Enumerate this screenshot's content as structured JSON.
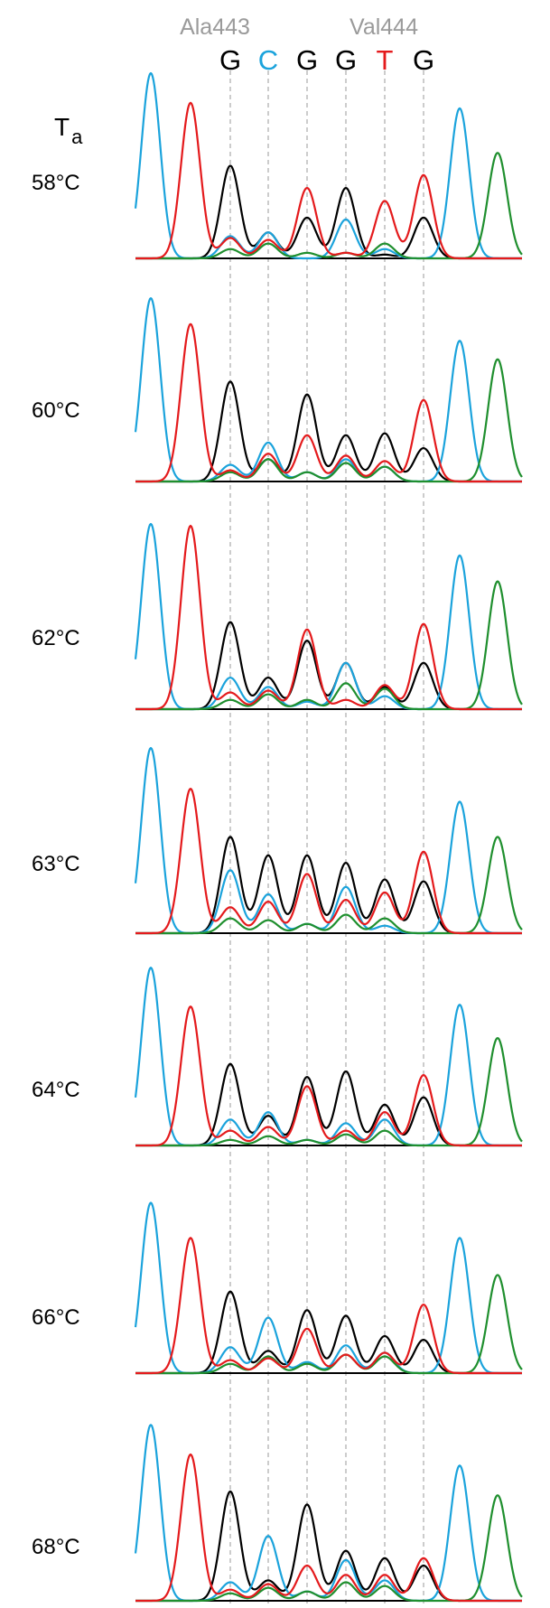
{
  "header": {
    "codons": [
      "Ala443",
      "Val444"
    ],
    "bases": [
      {
        "letter": "G",
        "color": "#000000"
      },
      {
        "letter": "C",
        "color": "#1ba3dc"
      },
      {
        "letter": "G",
        "color": "#000000"
      },
      {
        "letter": "G",
        "color": "#000000"
      },
      {
        "letter": "T",
        "color": "#e41a1c"
      },
      {
        "letter": "G",
        "color": "#000000"
      }
    ],
    "ta_letter": "T",
    "ta_subscript": "a"
  },
  "colors": {
    "A": "#1f8f2e",
    "C": "#1ba3dc",
    "G": "#000000",
    "T": "#e41a1c"
  },
  "chart_data": {
    "type": "line",
    "title": "",
    "xlabel": "",
    "ylabel": "",
    "channels": [
      "A",
      "C",
      "G",
      "T"
    ],
    "positions": [
      "C-flank-1",
      "T-flank-1",
      "G",
      "C",
      "G",
      "G",
      "T",
      "G",
      "C-flank-2",
      "A-flank-2"
    ],
    "rows": [
      {
        "label": "58°C",
        "peaks": {
          "A": [
            0,
            0,
            0.05,
            0.08,
            0.03,
            0.03,
            0.08,
            0,
            0,
            0.57
          ],
          "C": [
            1.0,
            0,
            0.12,
            0.14,
            0,
            0.21,
            0.05,
            0,
            0.81,
            0
          ],
          "G": [
            0,
            0,
            0.5,
            0.14,
            0.22,
            0.38,
            0.02,
            0.22,
            0,
            0
          ],
          "T": [
            0,
            0.84,
            0.11,
            0.1,
            0.38,
            0.03,
            0.31,
            0.45,
            0,
            0
          ]
        }
      },
      {
        "label": "60°C",
        "peaks": {
          "A": [
            0,
            0,
            0.05,
            0.12,
            0.05,
            0.1,
            0.08,
            0,
            0,
            0.66
          ],
          "C": [
            0.99,
            0,
            0.09,
            0.21,
            0.05,
            0.12,
            0.08,
            0,
            0.76,
            0
          ],
          "G": [
            0,
            0,
            0.54,
            0.12,
            0.47,
            0.25,
            0.26,
            0.18,
            0,
            0
          ],
          "T": [
            0,
            0.85,
            0.06,
            0.15,
            0.25,
            0.14,
            0.11,
            0.44,
            0,
            0
          ]
        }
      },
      {
        "label": "62°C",
        "peaks": {
          "A": [
            0,
            0,
            0.05,
            0.08,
            0.05,
            0.14,
            0.11,
            0,
            0,
            0.69
          ],
          "C": [
            1.0,
            0,
            0.17,
            0.12,
            0.04,
            0.25,
            0.07,
            0,
            0.83,
            0
          ],
          "G": [
            0,
            0,
            0.47,
            0.17,
            0.37,
            0.25,
            0.12,
            0.25,
            0,
            0
          ],
          "T": [
            0,
            0.99,
            0.09,
            0.1,
            0.43,
            0.05,
            0.13,
            0.46,
            0,
            0
          ]
        }
      },
      {
        "label": "63°C",
        "peaks": {
          "A": [
            0,
            0,
            0.08,
            0.07,
            0.05,
            0.1,
            0.08,
            0,
            0,
            0.52
          ],
          "C": [
            1.0,
            0,
            0.34,
            0.21,
            0.05,
            0.25,
            0.04,
            0,
            0.71,
            0
          ],
          "G": [
            0,
            0,
            0.52,
            0.42,
            0.42,
            0.38,
            0.29,
            0.28,
            0,
            0
          ],
          "T": [
            0,
            0.78,
            0.14,
            0.17,
            0.32,
            0.18,
            0.22,
            0.44,
            0,
            0
          ]
        }
      },
      {
        "label": "64°C",
        "peaks": {
          "A": [
            0,
            0,
            0.03,
            0.05,
            0.03,
            0.06,
            0.08,
            0,
            0,
            0.58
          ],
          "C": [
            0.96,
            0,
            0.14,
            0.18,
            0.03,
            0.12,
            0.14,
            0,
            0.76,
            0
          ],
          "G": [
            0,
            0,
            0.44,
            0.16,
            0.37,
            0.4,
            0.22,
            0.26,
            0,
            0
          ],
          "T": [
            0,
            0.75,
            0.08,
            0.1,
            0.32,
            0.08,
            0.18,
            0.38,
            0,
            0
          ]
        }
      },
      {
        "label": "66°C",
        "peaks": {
          "A": [
            0,
            0,
            0.05,
            0.09,
            0.05,
            0.1,
            0.09,
            0,
            0,
            0.53
          ],
          "C": [
            0.92,
            0,
            0.14,
            0.3,
            0.06,
            0.15,
            0.11,
            0,
            0.73,
            0
          ],
          "G": [
            0,
            0,
            0.44,
            0.12,
            0.34,
            0.31,
            0.2,
            0.18,
            0,
            0
          ],
          "T": [
            0,
            0.73,
            0.07,
            0.08,
            0.24,
            0.1,
            0.11,
            0.37,
            0,
            0
          ]
        }
      },
      {
        "label": "68°C",
        "peaks": {
          "A": [
            0,
            0,
            0.04,
            0.07,
            0.05,
            0.1,
            0.08,
            0,
            0,
            0.57
          ],
          "C": [
            0.95,
            0,
            0.1,
            0.35,
            0.05,
            0.22,
            0.11,
            0,
            0.73,
            0
          ],
          "G": [
            0,
            0,
            0.59,
            0.11,
            0.52,
            0.27,
            0.23,
            0.19,
            0,
            0
          ],
          "T": [
            0,
            0.79,
            0.06,
            0.09,
            0.19,
            0.14,
            0.14,
            0.23,
            0,
            0
          ]
        }
      }
    ]
  }
}
